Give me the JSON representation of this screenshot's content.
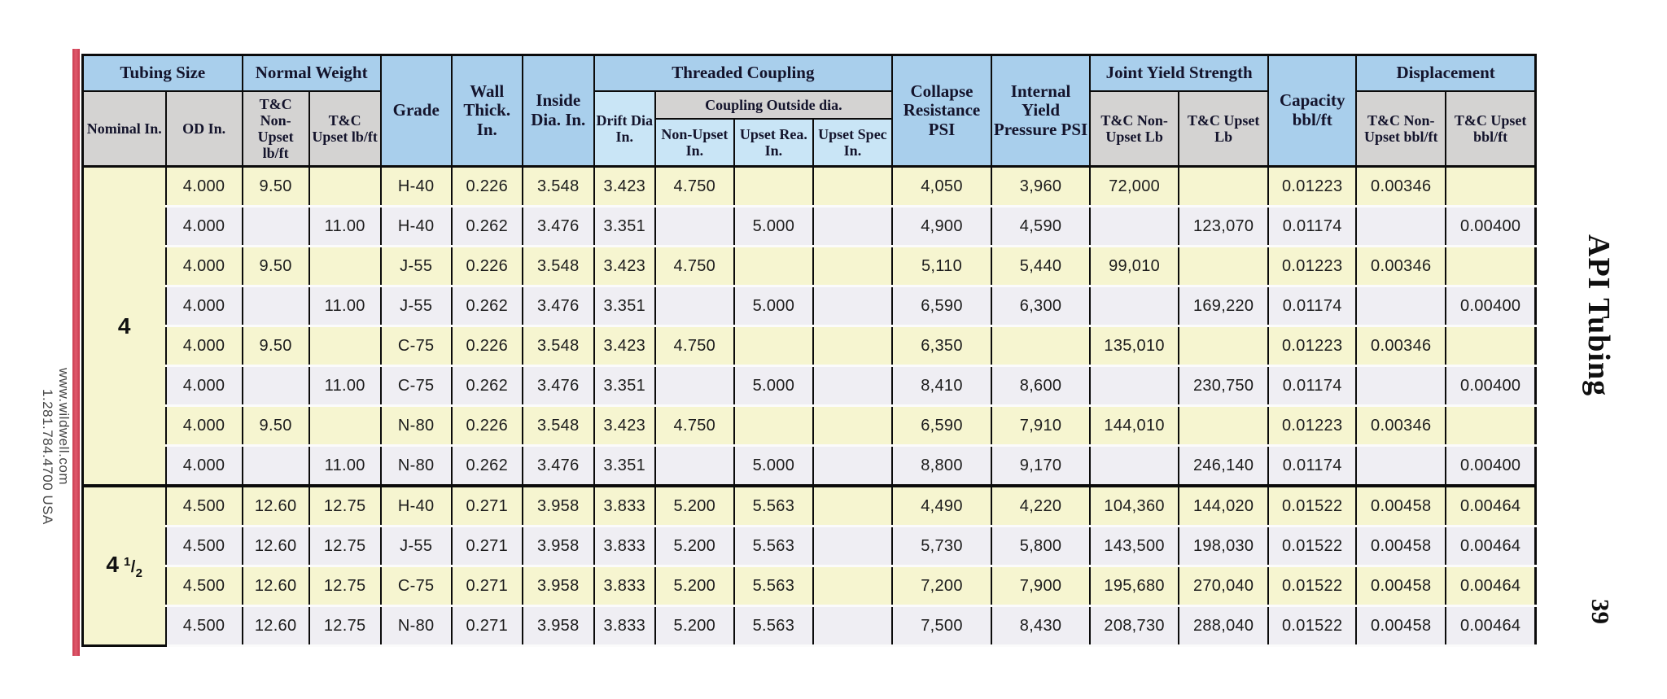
{
  "page": {
    "side_title": "API Tubing",
    "page_number": "39",
    "website": "www.wildwell.com",
    "phone": "1.281.784.4700 USA"
  },
  "colors": {
    "header_blue": "#a9cfec",
    "header_gray": "#d4d3d2",
    "header_light_blue": "#c9e5f6",
    "nominal_blue": "#cfe9f8",
    "row_yellow": "#f6f5d0",
    "row_gray": "#efeef3",
    "accent_red": "#d04659",
    "border_black": "#0b0b0b"
  },
  "table": {
    "group_headers": {
      "tubing_size": "Tubing Size",
      "normal_weight": "Normal Weight",
      "threaded_coupling": "Threaded Coupling",
      "coupling_outside_dia": "Coupling Outside dia.",
      "joint_yield_strength": "Joint Yield Strength",
      "displacement": "Displacement"
    },
    "columns": {
      "nominal": "Nominal In.",
      "od": "OD In.",
      "nw_non_upset": "T&C Non-Upset lb/ft",
      "nw_upset": "T&C Upset lb/ft",
      "grade": "Grade",
      "wall_thick": "Wall Thick. In.",
      "inside_dia": "Inside Dia. In.",
      "drift_dia": "Drift Dia In.",
      "coupling_non_upset": "Non-Upset In.",
      "coupling_upset_rea": "Upset Rea. In.",
      "coupling_upset_spec": "Upset Spec In.",
      "collapse_resistance": "Collapse Resistance PSI",
      "internal_yield": "Internal Yield Pressure PSI",
      "jy_non_upset": "T&C Non-Upset Lb",
      "jy_upset": "T&C Upset Lb",
      "capacity": "Capacity bbl/ft",
      "disp_non_upset": "T&C Non-Upset bbl/ft",
      "disp_upset": "T&C Upset bbl/ft"
    },
    "row_groups": [
      {
        "nominal": "4",
        "rows": [
          [
            "4.000",
            "9.50",
            "",
            "H-40",
            "0.226",
            "3.548",
            "3.423",
            "4.750",
            "",
            "",
            "4,050",
            "3,960",
            "72,000",
            "",
            "0.01223",
            "0.00346",
            ""
          ],
          [
            "4.000",
            "",
            "11.00",
            "H-40",
            "0.262",
            "3.476",
            "3.351",
            "",
            "5.000",
            "",
            "4,900",
            "4,590",
            "",
            "123,070",
            "0.01174",
            "",
            "0.00400"
          ],
          [
            "4.000",
            "9.50",
            "",
            "J-55",
            "0.226",
            "3.548",
            "3.423",
            "4.750",
            "",
            "",
            "5,110",
            "5,440",
            "99,010",
            "",
            "0.01223",
            "0.00346",
            ""
          ],
          [
            "4.000",
            "",
            "11.00",
            "J-55",
            "0.262",
            "3.476",
            "3.351",
            "",
            "5.000",
            "",
            "6,590",
            "6,300",
            "",
            "169,220",
            "0.01174",
            "",
            "0.00400"
          ],
          [
            "4.000",
            "9.50",
            "",
            "C-75",
            "0.226",
            "3.548",
            "3.423",
            "4.750",
            "",
            "",
            "6,350",
            "",
            "135,010",
            "",
            "0.01223",
            "0.00346",
            ""
          ],
          [
            "4.000",
            "",
            "11.00",
            "C-75",
            "0.262",
            "3.476",
            "3.351",
            "",
            "5.000",
            "",
            "8,410",
            "8,600",
            "",
            "230,750",
            "0.01174",
            "",
            "0.00400"
          ],
          [
            "4.000",
            "9.50",
            "",
            "N-80",
            "0.226",
            "3.548",
            "3.423",
            "4.750",
            "",
            "",
            "6,590",
            "7,910",
            "144,010",
            "",
            "0.01223",
            "0.00346",
            ""
          ],
          [
            "4.000",
            "",
            "11.00",
            "N-80",
            "0.262",
            "3.476",
            "3.351",
            "",
            "5.000",
            "",
            "8,800",
            "9,170",
            "",
            "246,140",
            "0.01174",
            "",
            "0.00400"
          ]
        ]
      },
      {
        "nominal": "4",
        "fraction_num": "1",
        "fraction_den": "2",
        "rows": [
          [
            "4.500",
            "12.60",
            "12.75",
            "H-40",
            "0.271",
            "3.958",
            "3.833",
            "5.200",
            "5.563",
            "",
            "4,490",
            "4,220",
            "104,360",
            "144,020",
            "0.01522",
            "0.00458",
            "0.00464"
          ],
          [
            "4.500",
            "12.60",
            "12.75",
            "J-55",
            "0.271",
            "3.958",
            "3.833",
            "5.200",
            "5.563",
            "",
            "5,730",
            "5,800",
            "143,500",
            "198,030",
            "0.01522",
            "0.00458",
            "0.00464"
          ],
          [
            "4.500",
            "12.60",
            "12.75",
            "C-75",
            "0.271",
            "3.958",
            "3.833",
            "5.200",
            "5.563",
            "",
            "7,200",
            "7,900",
            "195,680",
            "270,040",
            "0.01522",
            "0.00458",
            "0.00464"
          ],
          [
            "4.500",
            "12.60",
            "12.75",
            "N-80",
            "0.271",
            "3.958",
            "3.833",
            "5.200",
            "5.563",
            "",
            "7,500",
            "8,430",
            "208,730",
            "288,040",
            "0.01522",
            "0.00458",
            "0.00464"
          ]
        ]
      }
    ]
  }
}
